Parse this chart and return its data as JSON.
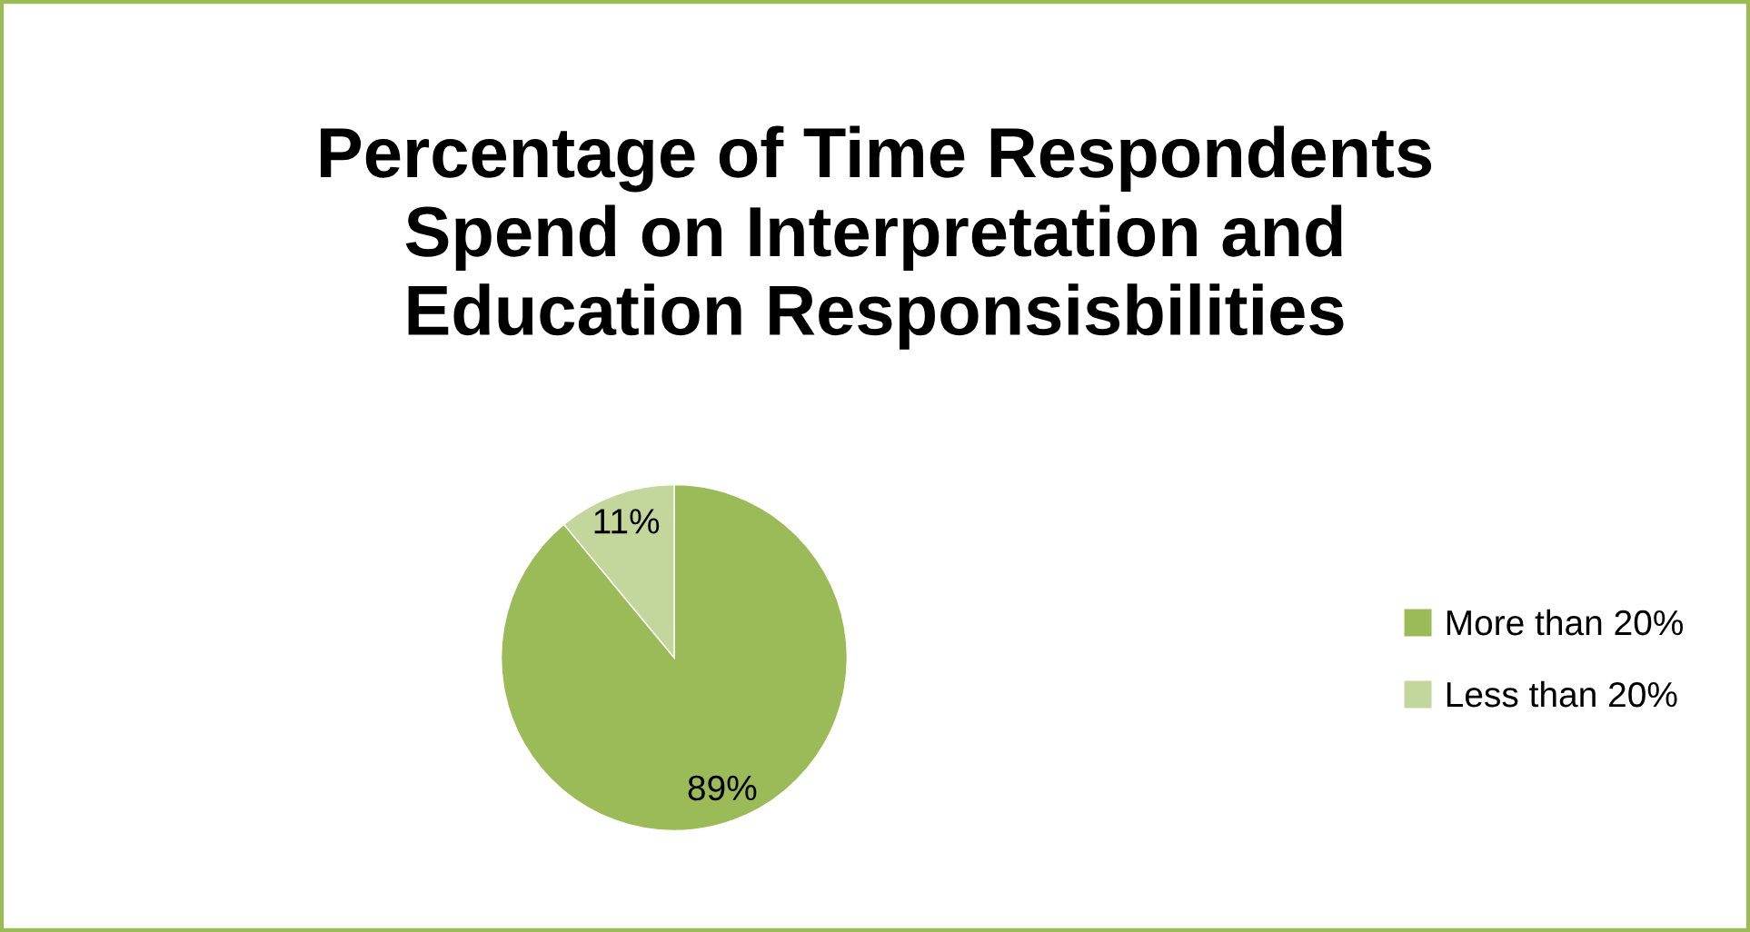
{
  "chart_data": {
    "type": "pie",
    "title": "Percentage of Time Respondents\nSpend on Interpretation and\nEducation Responsisbilities",
    "categories": [
      "More than 20%",
      "Less than 20%"
    ],
    "values": [
      89,
      11
    ],
    "colors": [
      "#9bbb59",
      "#c3d69b"
    ],
    "value_labels": [
      "89%",
      "11%"
    ],
    "legend": "right"
  }
}
